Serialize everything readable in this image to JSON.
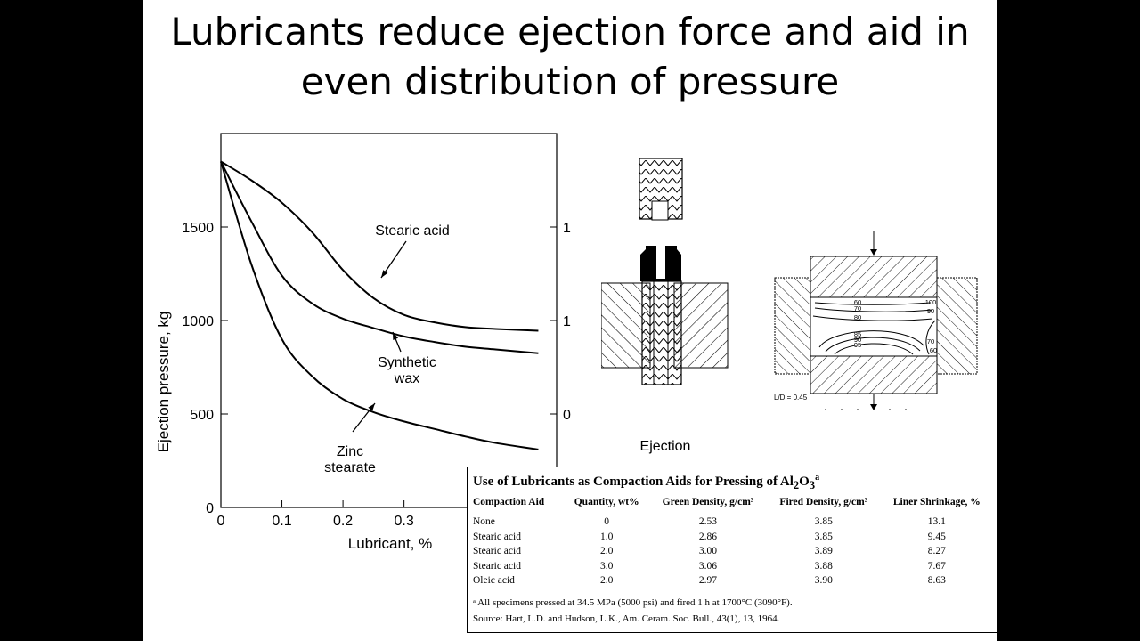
{
  "slide": {
    "title_line1": "Lubricants reduce ejection force and aid in",
    "title_line2": "even distribution of pressure"
  },
  "chart_data": {
    "type": "line",
    "xlabel": "Lubricant, %",
    "ylabel": "Ejection pressure, kg",
    "xlim": [
      0,
      0.55
    ],
    "ylim": [
      0,
      2000
    ],
    "x_ticks": [
      "0",
      "0.1",
      "0.2",
      "0.3"
    ],
    "y_ticks": [
      "0",
      "500",
      "1000",
      "1500"
    ],
    "right_axis_ticks": [
      "1",
      "1",
      "0"
    ],
    "grid": false,
    "series": [
      {
        "name": "Stearic acid",
        "x": [
          0,
          0.05,
          0.1,
          0.15,
          0.2,
          0.25,
          0.3,
          0.35,
          0.4,
          0.45,
          0.52
        ],
        "y": [
          1850,
          1750,
          1630,
          1470,
          1270,
          1120,
          1030,
          990,
          965,
          955,
          945
        ]
      },
      {
        "name": "Synthetic wax",
        "x": [
          0,
          0.05,
          0.1,
          0.15,
          0.2,
          0.25,
          0.3,
          0.35,
          0.4,
          0.45,
          0.52
        ],
        "y": [
          1850,
          1530,
          1240,
          1090,
          1010,
          960,
          915,
          885,
          860,
          845,
          825
        ]
      },
      {
        "name": "Zinc stearate",
        "x": [
          0,
          0.05,
          0.1,
          0.15,
          0.2,
          0.25,
          0.3,
          0.35,
          0.4,
          0.45,
          0.52
        ],
        "y": [
          1850,
          1300,
          900,
          700,
          580,
          510,
          460,
          420,
          380,
          345,
          310
        ]
      }
    ],
    "annotations": [
      {
        "text": [
          "Stearic acid"
        ]
      },
      {
        "text": [
          "Synthetic",
          "wax"
        ]
      },
      {
        "text": [
          "Zinc",
          "stearate"
        ]
      }
    ]
  },
  "diagrams": {
    "ejection_label": "Ejection",
    "ld_label": "L/D = 0.45",
    "contour_labels": [
      "60",
      "70",
      "80",
      "85",
      "90",
      "95",
      "100",
      "90",
      "70",
      "60"
    ]
  },
  "table": {
    "title_main": "Use of Lubricants as Compaction Aids for Pressing of Al",
    "title_sub": "2",
    "title_after": "O",
    "title_sub2": "3",
    "title_sup": "a",
    "headers": [
      "Compaction Aid",
      "Quantity, wt%",
      "Green Density, g/cm³",
      "Fired Density, g/cm³",
      "Liner Shrinkage, %"
    ],
    "rows": [
      [
        "None",
        "0",
        "2.53",
        "3.85",
        "13.1"
      ],
      [
        "Stearic acid",
        "1.0",
        "2.86",
        "3.85",
        "9.45"
      ],
      [
        "Stearic acid",
        "2.0",
        "3.00",
        "3.89",
        "8.27"
      ],
      [
        "Stearic acid",
        "3.0",
        "3.06",
        "3.88",
        "7.67"
      ],
      [
        "Oleic acid",
        "2.0",
        "2.97",
        "3.90",
        "8.63"
      ]
    ],
    "footnote": "ᵃ All specimens pressed at 34.5 MPa (5000 psi) and fired 1 h at 1700°C (3090°F).",
    "source": "Source: Hart, L.D. and Hudson, L.K., Am. Ceram. Soc. Bull., 43(1), 13, 1964."
  }
}
